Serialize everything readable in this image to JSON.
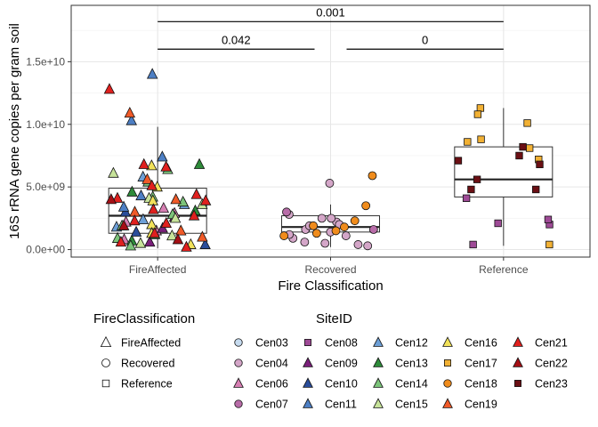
{
  "chart_data": {
    "type": "box",
    "xlabel": "Fire Classification",
    "ylabel": "16S rRNA gene copies per gram soil",
    "categories": [
      "FireAffected",
      "Recovered",
      "Reference"
    ],
    "ylim": [
      -600000000.0,
      19500000000.0
    ],
    "y_ticks": [
      {
        "value": 0,
        "label": "0.0e+00"
      },
      {
        "value": 5000000000.0,
        "label": "5.0e+09"
      },
      {
        "value": 10000000000.0,
        "label": "1.0e+10"
      },
      {
        "value": 15000000000.0,
        "label": "1.5e+10"
      }
    ],
    "grid": true,
    "boxes": [
      {
        "category": "FireAffected",
        "whisker_low": 100000000.0,
        "q1": 1300000000.0,
        "median": 2700000000.0,
        "q3": 4900000000.0,
        "whisker_high": 9800000000.0
      },
      {
        "category": "Recovered",
        "whisker_low": 200000000.0,
        "q1": 1400000000.0,
        "median": 1800000000.0,
        "q3": 2700000000.0,
        "whisker_high": 3600000000.0
      },
      {
        "category": "Reference",
        "whisker_low": 300000000.0,
        "q1": 4200000000.0,
        "median": 5600000000.0,
        "q3": 8200000000.0,
        "whisker_high": 11300000000.0
      }
    ],
    "comparisons": [
      {
        "from": "FireAffected",
        "to": "Reference",
        "y": 18200000000.0,
        "label": "0.001"
      },
      {
        "from": "FireAffected",
        "to": "Recovered",
        "y": 16000000000.0,
        "label": "0.042"
      },
      {
        "from": "Recovered",
        "to": "Reference",
        "y": 16000000000.0,
        "label": "0"
      }
    ],
    "series": [
      {
        "name": "Cen03",
        "color": "#c6dbef",
        "shape": "circle",
        "points": []
      },
      {
        "name": "Cen04",
        "color": "#d4a6c8",
        "shape": "circle",
        "points": [
          {
            "x": "Recovered",
            "y": 5300000000.0
          },
          {
            "x": "Recovered",
            "y": 2200000000.0
          },
          {
            "x": "Recovered",
            "y": 900000000.0
          },
          {
            "x": "Recovered",
            "y": 1600000000.0
          },
          {
            "x": "Recovered",
            "y": 500000000.0
          },
          {
            "x": "Recovered",
            "y": 2500000000.0
          },
          {
            "x": "Recovered",
            "y": 1200000000.0
          },
          {
            "x": "Recovered",
            "y": 300000000.0
          },
          {
            "x": "Recovered",
            "y": 2000000000.0
          },
          {
            "x": "Recovered",
            "y": 2500000000.0
          },
          {
            "x": "Recovered",
            "y": 1900000000.0
          },
          {
            "x": "Recovered",
            "y": 400000000.0
          },
          {
            "x": "Recovered",
            "y": 1100000000.0
          },
          {
            "x": "Recovered",
            "y": 2800000000.0
          },
          {
            "x": "Recovered",
            "y": 1400000000.0
          },
          {
            "x": "Recovered",
            "y": 600000000.0
          }
        ]
      },
      {
        "name": "Cen06",
        "color": "#d77fb3",
        "shape": "triangle",
        "points": [
          {
            "x": "FireAffected",
            "y": 2900000000.0
          },
          {
            "x": "FireAffected",
            "y": 800000000.0
          },
          {
            "x": "FireAffected",
            "y": 3300000000.0
          },
          {
            "x": "FireAffected",
            "y": 1500000000.0
          },
          {
            "x": "FireAffected",
            "y": 2200000000.0
          }
        ]
      },
      {
        "name": "Cen07",
        "color": "#b86ca8",
        "shape": "circle",
        "points": [
          {
            "x": "Recovered",
            "y": 3000000000.0
          },
          {
            "x": "Recovered",
            "y": 1600000000.0
          }
        ]
      },
      {
        "name": "Cen08",
        "color": "#9e4a96",
        "shape": "square",
        "points": [
          {
            "x": "Reference",
            "y": 2000000000.0
          },
          {
            "x": "Reference",
            "y": 4100000000.0
          },
          {
            "x": "Reference",
            "y": 2100000000.0
          },
          {
            "x": "Reference",
            "y": 2400000000.0
          },
          {
            "x": "Reference",
            "y": 400000000.0
          }
        ]
      },
      {
        "name": "Cen09",
        "color": "#7a1f7a",
        "shape": "triangle",
        "points": [
          {
            "x": "FireAffected",
            "y": 600000000.0
          },
          {
            "x": "FireAffected",
            "y": 1700000000.0
          },
          {
            "x": "FireAffected",
            "y": 2600000000.0
          }
        ]
      },
      {
        "name": "Cen10",
        "color": "#2a4d9a",
        "shape": "triangle",
        "points": [
          {
            "x": "FireAffected",
            "y": 1400000000.0
          },
          {
            "x": "FireAffected",
            "y": 3000000000.0
          },
          {
            "x": "FireAffected",
            "y": 400000000.0
          }
        ]
      },
      {
        "name": "Cen11",
        "color": "#4d7fc4",
        "shape": "triangle",
        "points": [
          {
            "x": "FireAffected",
            "y": 14000000000.0
          },
          {
            "x": "FireAffected",
            "y": 10300000000.0
          },
          {
            "x": "FireAffected",
            "y": 7400000000.0
          },
          {
            "x": "FireAffected",
            "y": 4300000000.0
          },
          {
            "x": "FireAffected",
            "y": 3400000000.0
          }
        ]
      },
      {
        "name": "Cen12",
        "color": "#6d9fd6",
        "shape": "triangle",
        "points": [
          {
            "x": "FireAffected",
            "y": 3600000000.0
          },
          {
            "x": "FireAffected",
            "y": 2400000000.0
          },
          {
            "x": "FireAffected",
            "y": 5800000000.0
          },
          {
            "x": "FireAffected",
            "y": 1800000000.0
          }
        ]
      },
      {
        "name": "Cen13",
        "color": "#2e8b3a",
        "shape": "triangle",
        "points": [
          {
            "x": "FireAffected",
            "y": 6800000000.0
          },
          {
            "x": "FireAffected",
            "y": 4600000000.0
          },
          {
            "x": "FireAffected",
            "y": 3100000000.0
          },
          {
            "x": "FireAffected",
            "y": 1200000000.0
          },
          {
            "x": "FireAffected",
            "y": 700000000.0
          }
        ]
      },
      {
        "name": "Cen14",
        "color": "#7cc47a",
        "shape": "triangle",
        "points": [
          {
            "x": "FireAffected",
            "y": 6400000000.0
          },
          {
            "x": "FireAffected",
            "y": 5400000000.0
          },
          {
            "x": "FireAffected",
            "y": 3800000000.0
          },
          {
            "x": "FireAffected",
            "y": 2800000000.0
          },
          {
            "x": "FireAffected",
            "y": 1900000000.0
          },
          {
            "x": "FireAffected",
            "y": 300000000.0
          },
          {
            "x": "FireAffected",
            "y": 4200000000.0
          },
          {
            "x": "FireAffected",
            "y": 900000000.0
          }
        ]
      },
      {
        "name": "Cen15",
        "color": "#c7e39a",
        "shape": "triangle",
        "points": [
          {
            "x": "FireAffected",
            "y": 6100000000.0
          },
          {
            "x": "FireAffected",
            "y": 4100000000.0
          },
          {
            "x": "FireAffected",
            "y": 2500000000.0
          },
          {
            "x": "FireAffected",
            "y": 1100000000.0
          },
          {
            "x": "FireAffected",
            "y": 3600000000.0
          },
          {
            "x": "FireAffected",
            "y": 500000000.0
          }
        ]
      },
      {
        "name": "Cen16",
        "color": "#f2e25a",
        "shape": "triangle",
        "points": [
          {
            "x": "FireAffected",
            "y": 6700000000.0
          },
          {
            "x": "FireAffected",
            "y": 5000000000.0
          },
          {
            "x": "FireAffected",
            "y": 2000000000.0
          },
          {
            "x": "FireAffected",
            "y": 400000000.0
          },
          {
            "x": "FireAffected",
            "y": 3900000000.0
          },
          {
            "x": "FireAffected",
            "y": 1300000000.0
          }
        ]
      },
      {
        "name": "Cen17",
        "color": "#f2b134",
        "shape": "square",
        "points": [
          {
            "x": "Reference",
            "y": 11300000000.0
          },
          {
            "x": "Reference",
            "y": 10800000000.0
          },
          {
            "x": "Reference",
            "y": 10100000000.0
          },
          {
            "x": "Reference",
            "y": 8600000000.0
          },
          {
            "x": "Reference",
            "y": 8800000000.0
          },
          {
            "x": "Reference",
            "y": 8100000000.0
          },
          {
            "x": "Reference",
            "y": 7200000000.0
          },
          {
            "x": "Reference",
            "y": 400000000.0
          }
        ]
      },
      {
        "name": "Cen18",
        "color": "#f08c1c",
        "shape": "circle",
        "points": [
          {
            "x": "Recovered",
            "y": 5900000000.0
          },
          {
            "x": "Recovered",
            "y": 3500000000.0
          },
          {
            "x": "Recovered",
            "y": 2300000000.0
          },
          {
            "x": "Recovered",
            "y": 1800000000.0
          },
          {
            "x": "Recovered",
            "y": 1500000000.0
          },
          {
            "x": "Recovered",
            "y": 1100000000.0
          },
          {
            "x": "Recovered",
            "y": 1900000000.0
          },
          {
            "x": "Recovered",
            "y": 1300000000.0
          }
        ]
      },
      {
        "name": "Cen19",
        "color": "#f05a28",
        "shape": "triangle",
        "points": [
          {
            "x": "FireAffected",
            "y": 10900000000.0
          },
          {
            "x": "FireAffected",
            "y": 5600000000.0
          },
          {
            "x": "FireAffected",
            "y": 4000000000.0
          },
          {
            "x": "FireAffected",
            "y": 1500000000.0
          },
          {
            "x": "FireAffected",
            "y": 3000000000.0
          },
          {
            "x": "FireAffected",
            "y": 1000000000.0
          }
        ]
      },
      {
        "name": "Cen21",
        "color": "#e0201e",
        "shape": "triangle",
        "points": [
          {
            "x": "FireAffected",
            "y": 12800000000.0
          },
          {
            "x": "FireAffected",
            "y": 6800000000.0
          },
          {
            "x": "FireAffected",
            "y": 6600000000.0
          },
          {
            "x": "FireAffected",
            "y": 5100000000.0
          },
          {
            "x": "FireAffected",
            "y": 4100000000.0
          },
          {
            "x": "FireAffected",
            "y": 3900000000.0
          },
          {
            "x": "FireAffected",
            "y": 3200000000.0
          },
          {
            "x": "FireAffected",
            "y": 2700000000.0
          },
          {
            "x": "FireAffected",
            "y": 2100000000.0
          },
          {
            "x": "FireAffected",
            "y": 1300000000.0
          },
          {
            "x": "FireAffected",
            "y": 600000000.0
          },
          {
            "x": "FireAffected",
            "y": 200000000.0
          },
          {
            "x": "FireAffected",
            "y": 4400000000.0
          },
          {
            "x": "FireAffected",
            "y": 2300000000.0
          }
        ]
      },
      {
        "name": "Cen22",
        "color": "#a50f15",
        "shape": "triangle",
        "points": [
          {
            "x": "FireAffected",
            "y": 4000000000.0
          },
          {
            "x": "FireAffected",
            "y": 1900000000.0
          },
          {
            "x": "FireAffected",
            "y": 800000000.0
          }
        ]
      },
      {
        "name": "Cen23",
        "color": "#6b0f14",
        "shape": "square",
        "points": [
          {
            "x": "Reference",
            "y": 8200000000.0
          },
          {
            "x": "Reference",
            "y": 7500000000.0
          },
          {
            "x": "Reference",
            "y": 6800000000.0
          },
          {
            "x": "Reference",
            "y": 5600000000.0
          },
          {
            "x": "Reference",
            "y": 4800000000.0
          },
          {
            "x": "Reference",
            "y": 4800000000.0
          },
          {
            "x": "Reference",
            "y": 7100000000.0
          }
        ]
      }
    ]
  },
  "legend_shape": {
    "title": "FireClassification",
    "items": [
      {
        "label": "FireAffected",
        "shape": "triangle"
      },
      {
        "label": "Recovered",
        "shape": "circle"
      },
      {
        "label": "Reference",
        "shape": "square"
      }
    ]
  },
  "legend_site": {
    "title": "SiteID"
  }
}
